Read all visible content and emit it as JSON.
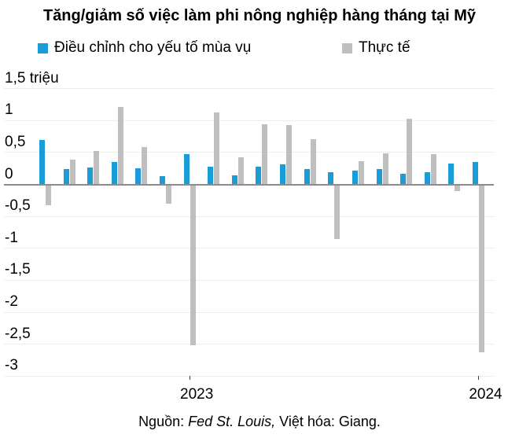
{
  "title": "Tăng/giảm số việc làm phi nông nghiệp hàng tháng tại Mỹ",
  "legend": {
    "seasonal": {
      "label": "Điều chỉnh cho yếu tố mùa vụ",
      "color": "#1A9CD8"
    },
    "actual": {
      "label": "Thực tế",
      "color": "#BFBFBF"
    }
  },
  "source": {
    "prefix": "Nguồn: ",
    "italic": "Fed St. Louis,",
    "suffix": " Việt hóa: Giang."
  },
  "chart_data": {
    "type": "bar",
    "title": "Tăng/giảm số việc làm phi nông nghiệp hàng tháng tại Mỹ",
    "ylabel_unit_label": "1,5 triệu",
    "unit": "triệu (millions of jobs)",
    "ylim": [
      -3,
      1.5
    ],
    "grid": "horizontal",
    "legend_position": "top",
    "y_ticks": [
      {
        "label": "1,5 triệu",
        "value": 1.5
      },
      {
        "label": "1",
        "value": 1
      },
      {
        "label": "0,5",
        "value": 0.5
      },
      {
        "label": "0",
        "value": 0
      },
      {
        "label": "-0,5",
        "value": -0.5
      },
      {
        "label": "-1",
        "value": -1
      },
      {
        "label": "-1,5",
        "value": -1.5
      },
      {
        "label": "-2",
        "value": -2
      },
      {
        "label": "-2,5",
        "value": -2.5
      },
      {
        "label": "-3",
        "value": -3
      }
    ],
    "categories": [
      "2022-07",
      "2022-08",
      "2022-09",
      "2022-10",
      "2022-11",
      "2022-12",
      "2023-01",
      "2023-02",
      "2023-03",
      "2023-04",
      "2023-05",
      "2023-06",
      "2023-07",
      "2023-08",
      "2023-09",
      "2023-10",
      "2023-11",
      "2023-12",
      "2024-01"
    ],
    "x_ticks": [
      {
        "label": "2023",
        "category_index": 6
      },
      {
        "label": "2024",
        "category_index": 18
      }
    ],
    "series": [
      {
        "name": "Điều chỉnh cho yếu tố mùa vụ",
        "color": "#1A9CD8",
        "values": [
          0.69,
          0.24,
          0.26,
          0.35,
          0.25,
          0.13,
          0.47,
          0.28,
          0.14,
          0.28,
          0.31,
          0.24,
          0.19,
          0.21,
          0.24,
          0.16,
          0.19,
          0.33,
          0.35
        ]
      },
      {
        "name": "Thực tế",
        "color": "#BFBFBF",
        "values": [
          -0.33,
          0.39,
          0.52,
          1.21,
          0.58,
          -0.3,
          -2.52,
          1.13,
          0.42,
          0.94,
          0.93,
          0.71,
          -0.86,
          0.36,
          0.49,
          1.03,
          0.47,
          -0.1,
          -2.62
        ]
      }
    ]
  }
}
